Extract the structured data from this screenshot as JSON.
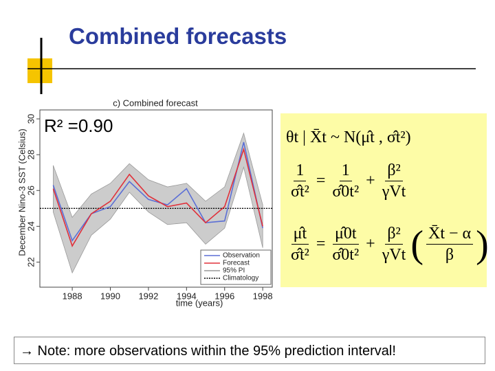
{
  "slide": {
    "title": "Combined forecasts",
    "r_squared": "R² =0.90",
    "note": "→ Note: more observations within the 95% prediction interval!",
    "equations": {
      "eq1": "θt | X̄t ~ N(μ̂t , σ̂t²)",
      "eq2": {
        "lhs_num": "1",
        "lhs_den": "σ̂t²",
        "mid_num": "1",
        "mid_den": "σ̂0t²",
        "rhs_num": "β²",
        "rhs_den": "γVt"
      },
      "eq3": {
        "lhs_num": "μ̂t",
        "lhs_den": "σ̂t²",
        "mid_num": "μ̂0t",
        "mid_den": "σ̂0t²",
        "rhs_num": "β²",
        "rhs_den": "γVt",
        "par_num": "X̄t − α",
        "par_den": "β"
      }
    }
  },
  "chart_data": {
    "type": "line",
    "title": "c) Combined forecast",
    "x_label": "time (years)",
    "y_label": "December Nino-3 SST (Celsius)",
    "x": [
      1987,
      1988,
      1989,
      1990,
      1991,
      1992,
      1993,
      1994,
      1995,
      1996,
      1997,
      1998
    ],
    "series": [
      {
        "name": "Observation",
        "color": "#5b6fd6",
        "values": [
          26.3,
          23.2,
          24.7,
          25.1,
          26.5,
          25.5,
          25.2,
          26.1,
          24.2,
          24.3,
          28.7,
          23.9
        ]
      },
      {
        "name": "Forecast",
        "color": "#e0303a",
        "values": [
          26.1,
          22.9,
          24.7,
          25.4,
          26.9,
          25.7,
          25.1,
          25.3,
          24.2,
          25.1,
          28.3,
          24.0
        ]
      }
    ],
    "interval": {
      "name": "95% PI",
      "color": "#cccccc",
      "upper": [
        27.4,
        24.5,
        25.8,
        26.4,
        27.5,
        26.6,
        26.2,
        26.4,
        25.4,
        26.2,
        29.2,
        25.2
      ],
      "lower": [
        24.8,
        21.4,
        23.5,
        24.4,
        25.9,
        24.8,
        24.1,
        24.2,
        23.0,
        23.9,
        27.3,
        22.8
      ]
    },
    "climatology": {
      "name": "Climatology",
      "color": "#000000",
      "value": 25.0
    },
    "xlim": [
      1986.3,
      1998.5
    ],
    "ylim": [
      20.6,
      30.5
    ],
    "xticks": [
      1988,
      1990,
      1992,
      1994,
      1996,
      1998
    ],
    "yticks": [
      22,
      24,
      26,
      28,
      30
    ],
    "legend": "lower right"
  }
}
